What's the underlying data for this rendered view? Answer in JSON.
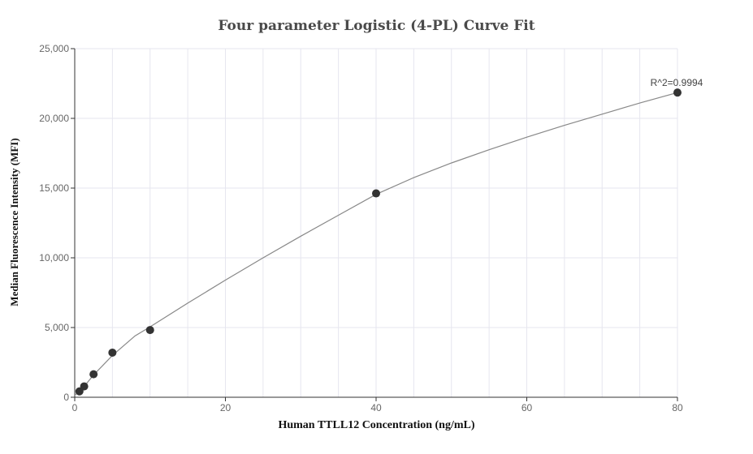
{
  "chart_data": {
    "type": "scatter",
    "title": "Four parameter Logistic (4-PL) Curve Fit",
    "xlabel": "Human TTLL12 Concentration (ng/mL)",
    "ylabel": "Median Fluorescence Intensity (MFI)",
    "xlim": [
      0,
      80
    ],
    "ylim": [
      0,
      25000
    ],
    "x_ticks": [
      0,
      20,
      40,
      60,
      80
    ],
    "y_ticks": [
      0,
      5000,
      10000,
      15000,
      20000,
      25000
    ],
    "x_tick_labels": [
      "0",
      "20",
      "40",
      "60",
      "80"
    ],
    "y_tick_labels": [
      "0",
      "5,000",
      "10,000",
      "15,000",
      "20,000",
      "25,000"
    ],
    "grid": true,
    "points": [
      {
        "x": 0.625,
        "y": 420
      },
      {
        "x": 1.25,
        "y": 780
      },
      {
        "x": 2.5,
        "y": 1650
      },
      {
        "x": 5,
        "y": 3200
      },
      {
        "x": 10,
        "y": 4820
      },
      {
        "x": 40,
        "y": 14620
      },
      {
        "x": 80,
        "y": 21850
      }
    ],
    "fit_curve": [
      {
        "x": 0,
        "y": 150
      },
      {
        "x": 0.625,
        "y": 420
      },
      {
        "x": 1.25,
        "y": 780
      },
      {
        "x": 2.5,
        "y": 1600
      },
      {
        "x": 5,
        "y": 3000
      },
      {
        "x": 8,
        "y": 4400
      },
      {
        "x": 10,
        "y": 5050
      },
      {
        "x": 15,
        "y": 6750
      },
      {
        "x": 20,
        "y": 8400
      },
      {
        "x": 25,
        "y": 10000
      },
      {
        "x": 30,
        "y": 11550
      },
      {
        "x": 35,
        "y": 13050
      },
      {
        "x": 40,
        "y": 14550
      },
      {
        "x": 45,
        "y": 15750
      },
      {
        "x": 50,
        "y": 16800
      },
      {
        "x": 55,
        "y": 17750
      },
      {
        "x": 60,
        "y": 18650
      },
      {
        "x": 65,
        "y": 19500
      },
      {
        "x": 70,
        "y": 20300
      },
      {
        "x": 75,
        "y": 21100
      },
      {
        "x": 80,
        "y": 21850
      }
    ],
    "annotation": "R^2=0.9994",
    "colors": {
      "points": "#333333",
      "curve": "#888888",
      "grid": "#e6e6ef"
    }
  }
}
